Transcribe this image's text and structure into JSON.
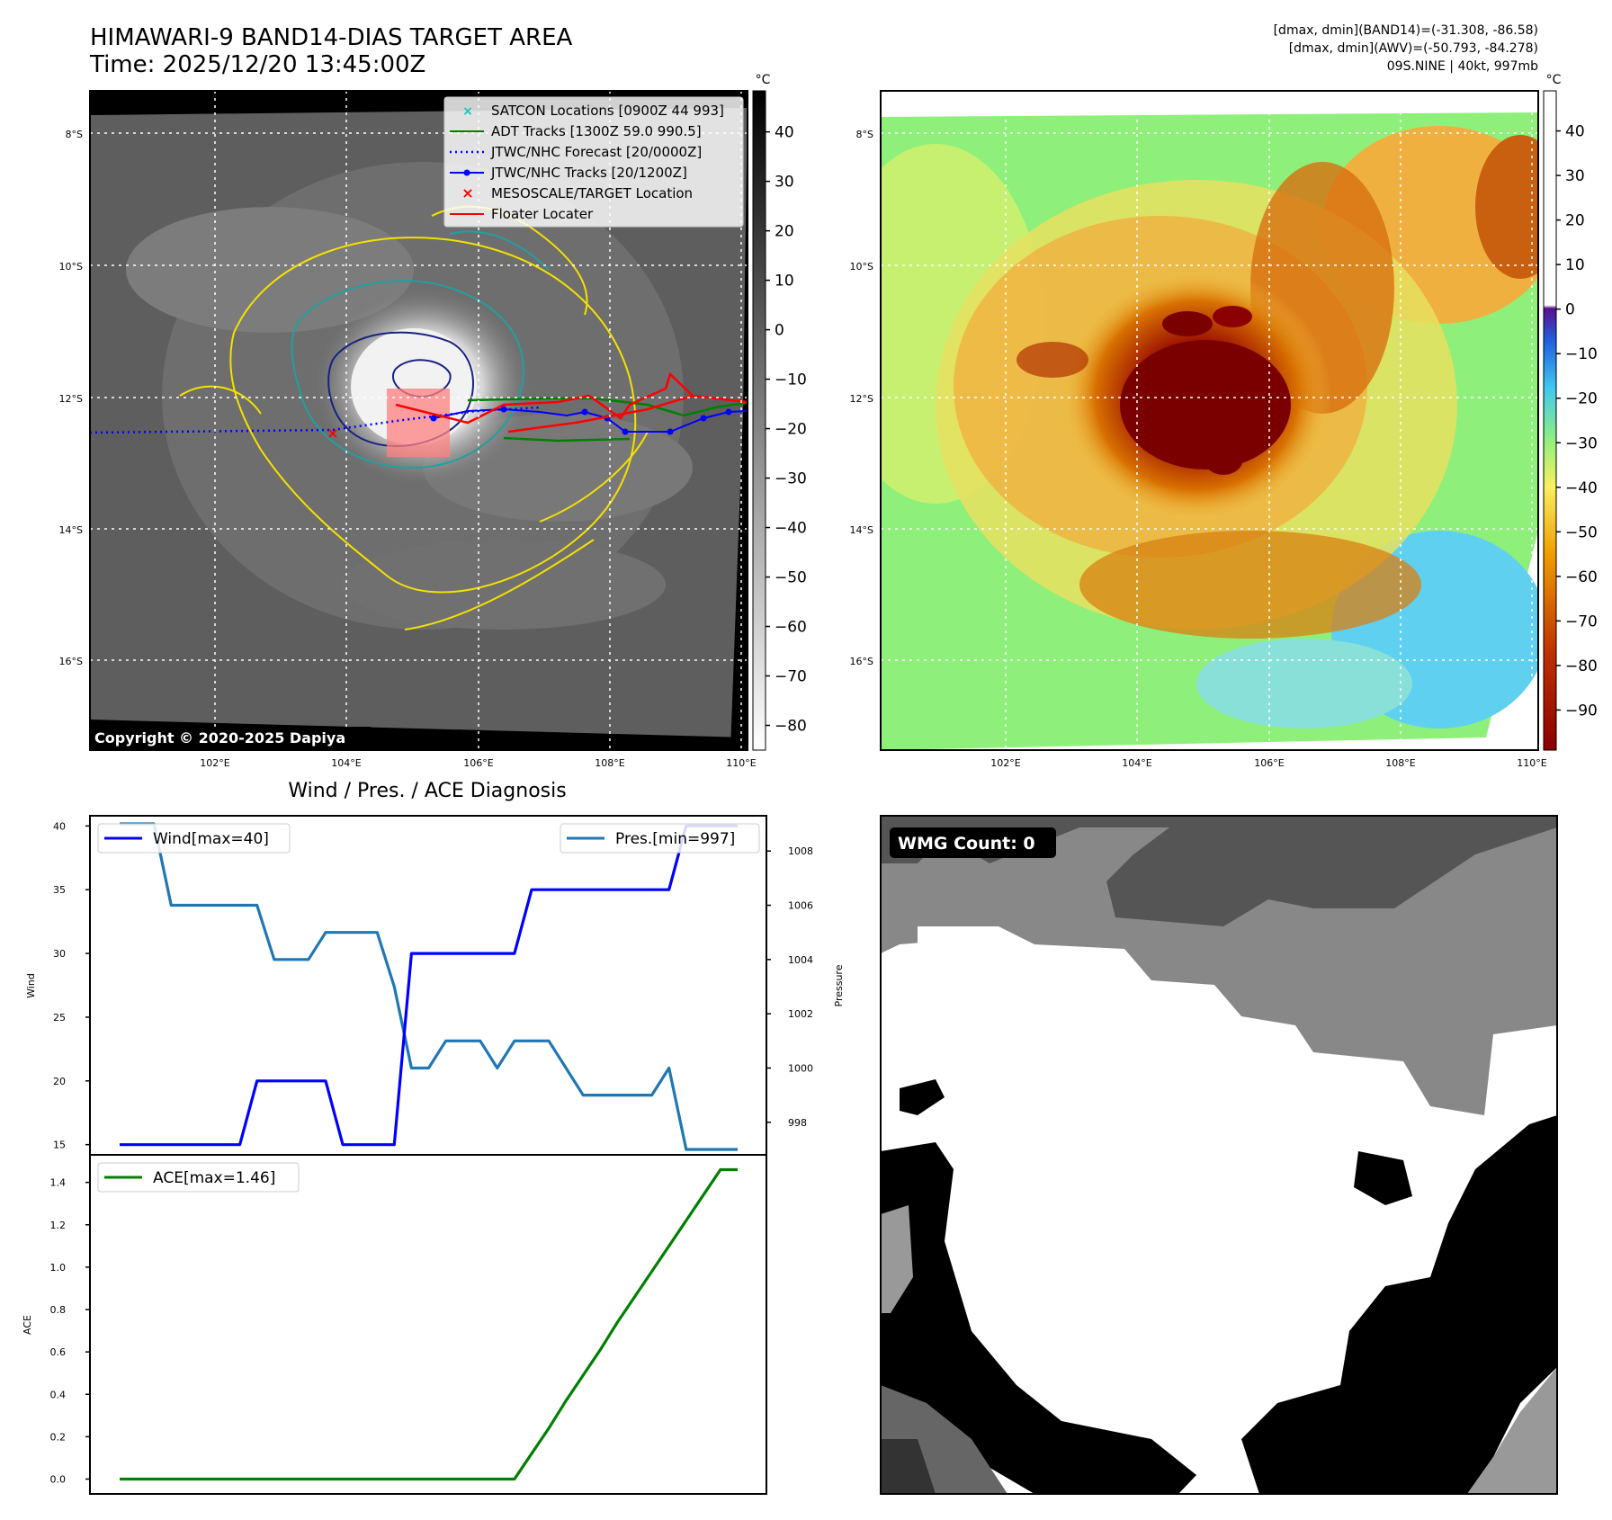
{
  "header": {
    "title_line1": "HIMAWARI-9 BAND14-DIAS TARGET AREA",
    "title_line2": "Time: 2025/12/20 13:45:00Z",
    "right_line1": "[dmax, dmin](BAND14)=(-31.308, -86.58)",
    "right_line2": "[dmax, dmin](AWV)=(-50.793, -84.278)",
    "right_line3": "09S.NINE | 40kt, 997mb"
  },
  "map_axes": {
    "lat_labels": [
      "8°S",
      "10°S",
      "12°S",
      "14°S",
      "16°S"
    ],
    "lon_labels": [
      "102°E",
      "104°E",
      "106°E",
      "108°E",
      "110°E"
    ]
  },
  "ir_panel": {
    "copyright": "Copyright © 2020-2025 Dapiya",
    "colorbar_unit": "°C",
    "colorbar_ticks": [
      "40",
      "30",
      "20",
      "10",
      "0",
      "−10",
      "−20",
      "−30",
      "−40",
      "−50",
      "−60",
      "−70",
      "−80"
    ],
    "legend": [
      {
        "label": "SATCON Locations [0900Z 44 993]",
        "color": "#18c0c0",
        "marker": "x"
      },
      {
        "label": "ADT Tracks [1300Z 59.0 990.5]",
        "color": "#008000",
        "marker": "line"
      },
      {
        "label": "JTWC/NHC Forecast [20/0000Z]",
        "color": "#0000ff",
        "marker": "dotted"
      },
      {
        "label": "JTWC/NHC Tracks [20/1200Z]",
        "color": "#0000ff",
        "marker": "line-dot"
      },
      {
        "label": "MESOSCALE/TARGET Location",
        "color": "#ff0000",
        "marker": "x"
      },
      {
        "label": "Floater Locater",
        "color": "#ff0000",
        "marker": "line"
      }
    ]
  },
  "awv_panel": {
    "colorbar_unit": "°C",
    "colorbar_ticks": [
      "40",
      "30",
      "20",
      "10",
      "0",
      "−10",
      "−20",
      "−30",
      "−40",
      "−50",
      "−60",
      "−70",
      "−80",
      "−90"
    ]
  },
  "diag_panel": {
    "title": "Wind / Pres. / ACE Diagnosis",
    "wind_ylabel": "Wind",
    "pres_ylabel": "Pressure",
    "ace_ylabel": "ACE",
    "wind_legend": "Wind[max=40]",
    "pres_legend": "Pres.[min=997]",
    "ace_legend": "ACE[max=1.46]",
    "wind_ticks": [
      "40",
      "35",
      "30",
      "25",
      "20",
      "15"
    ],
    "pres_ticks": [
      "1008",
      "1006",
      "1004",
      "1002",
      "1000",
      "998"
    ],
    "ace_ticks": [
      "1.4",
      "1.2",
      "1.0",
      "0.8",
      "0.6",
      "0.4",
      "0.2",
      "0.0"
    ]
  },
  "wmg_panel": {
    "badge": "WMG Count: 0"
  },
  "colors": {
    "wind": "#0000ff",
    "pressure": "#1f77b4",
    "ace": "#008000"
  },
  "chart_data": [
    {
      "type": "line",
      "title": "Wind / Pres. / ACE Diagnosis",
      "xlabel": "",
      "ylabel": "Wind",
      "ylim": [
        14.2,
        40.8
      ],
      "x": [
        0,
        1,
        2,
        3,
        4,
        5,
        6,
        7,
        8,
        9,
        10,
        11,
        12,
        13,
        14,
        15,
        16,
        17,
        18,
        19,
        20,
        21,
        22,
        23,
        24,
        25,
        26,
        27,
        28,
        29,
        30,
        31,
        32,
        33,
        34,
        35,
        36
      ],
      "series": [
        {
          "name": "Wind[max=40]",
          "axis": "left",
          "values": [
            15,
            15,
            15,
            15,
            15,
            15,
            15,
            15,
            20,
            20,
            20,
            20,
            20,
            15,
            15,
            15,
            15,
            30,
            30,
            30,
            30,
            30,
            30,
            30,
            35,
            35,
            35,
            35,
            35,
            35,
            35,
            35,
            35,
            40,
            40,
            40,
            40
          ]
        },
        {
          "name": "Pres.[min=997]",
          "axis": "right",
          "ylim": [
            996.8,
            1009.3
          ],
          "values": [
            1009,
            1009,
            1009,
            1006,
            1006,
            1006,
            1006,
            1006,
            1006,
            1004,
            1004,
            1004,
            1005,
            1005,
            1005,
            1005,
            1003,
            1000,
            1000,
            1001,
            1001,
            1001,
            1000,
            1001,
            1001,
            1001,
            1000,
            999,
            999,
            999,
            999,
            999,
            1000,
            997,
            997,
            997,
            997
          ]
        }
      ],
      "right_ylabel": "Pressure"
    },
    {
      "type": "line",
      "xlabel": "",
      "ylabel": "ACE",
      "ylim": [
        -0.07,
        1.53
      ],
      "x": [
        0,
        1,
        2,
        3,
        4,
        5,
        6,
        7,
        8,
        9,
        10,
        11,
        12,
        13,
        14,
        15,
        16,
        17,
        18,
        19,
        20,
        21,
        22,
        23,
        24,
        25,
        26,
        27,
        28,
        29,
        30,
        31,
        32,
        33,
        34,
        35,
        36
      ],
      "series": [
        {
          "name": "ACE[max=1.46]",
          "values": [
            0,
            0,
            0,
            0,
            0,
            0,
            0,
            0,
            0,
            0,
            0,
            0,
            0,
            0,
            0,
            0,
            0,
            0,
            0,
            0,
            0,
            0,
            0,
            0,
            0.12,
            0.24,
            0.37,
            0.49,
            0.61,
            0.74,
            0.86,
            0.98,
            1.1,
            1.22,
            1.34,
            1.46,
            1.46
          ]
        }
      ]
    }
  ]
}
